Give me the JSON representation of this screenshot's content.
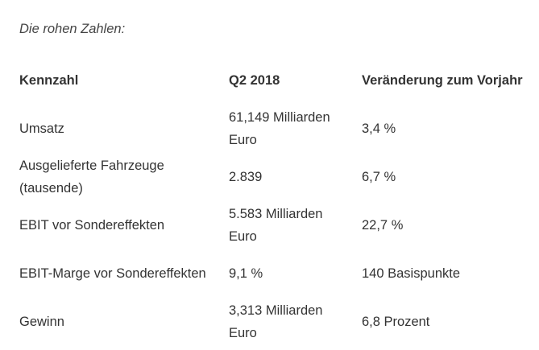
{
  "intro": "Die rohen Zahlen:",
  "table": {
    "headers": [
      "Kennzahl",
      "Q2 2018",
      "Veränderung zum Vorjahr"
    ],
    "rows": [
      [
        "Umsatz",
        "61,149 Milliarden Euro",
        "3,4 %"
      ],
      [
        "Ausgelieferte Fahrzeuge (tausende)",
        "2.839",
        "6,7 %"
      ],
      [
        "EBIT vor Sondereffekten",
        "5.583 Milliarden Euro",
        "22,7 %"
      ],
      [
        "EBIT-Marge vor Sondereffekten",
        "9,1 %",
        "140 Basispunkte"
      ],
      [
        "Gewinn",
        "3,313 Milliarden Euro",
        "6,8 Prozent"
      ]
    ]
  }
}
